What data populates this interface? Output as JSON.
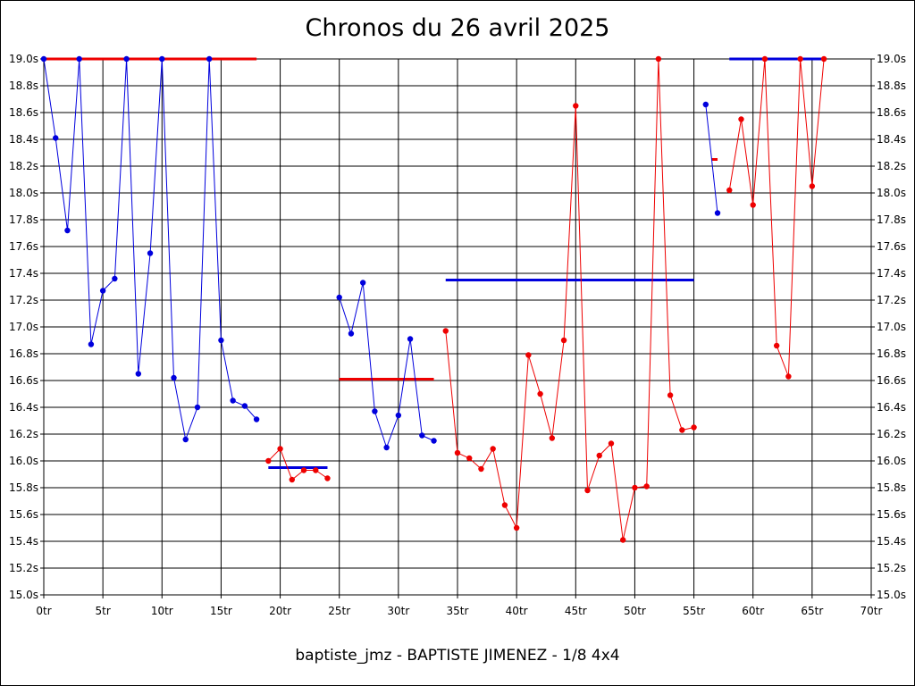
{
  "chart_data": {
    "type": "line",
    "title": "Chronos du 26 avril 2025",
    "subtitle": "baptiste_jmz - BAPTISTE JIMENEZ - 1/8 4x4",
    "xlabel": "",
    "ylabel": "",
    "xlim": [
      0,
      70
    ],
    "ylim": [
      15.0,
      19.0
    ],
    "x_ticks": [
      "0tr",
      "5tr",
      "10tr",
      "15tr",
      "20tr",
      "25tr",
      "30tr",
      "35tr",
      "40tr",
      "45tr",
      "50tr",
      "55tr",
      "60tr",
      "65tr",
      "70tr"
    ],
    "y_ticks": [
      "15.0s",
      "15.2s",
      "15.4s",
      "15.6s",
      "15.8s",
      "16.0s",
      "16.2s",
      "16.4s",
      "16.6s",
      "16.8s",
      "17.0s",
      "17.2s",
      "17.4s",
      "17.6s",
      "17.8s",
      "18.0s",
      "18.2s",
      "18.4s",
      "18.6s",
      "18.8s",
      "19.0s"
    ],
    "grid": true,
    "colors": {
      "blue": "#0000dd",
      "red": "#ee0000",
      "grid": "#000000"
    },
    "series": [
      {
        "color": "blue",
        "x": [
          0,
          1,
          2,
          3,
          4,
          5,
          6,
          7,
          8,
          9,
          10,
          11,
          12,
          13,
          14,
          15,
          16,
          17,
          18
        ],
        "y": [
          19.0,
          18.41,
          17.72,
          19.0,
          16.87,
          17.27,
          17.36,
          19.0,
          16.65,
          17.55,
          19.0,
          16.62,
          16.16,
          16.4,
          19.0,
          16.9,
          16.45,
          16.41,
          16.31
        ]
      },
      {
        "color": "red",
        "x": [
          19,
          20,
          21,
          22,
          23,
          24
        ],
        "y": [
          16.0,
          16.09,
          15.86,
          15.93,
          15.93,
          15.87
        ]
      },
      {
        "color": "blue",
        "x": [
          25,
          26,
          27,
          28,
          29,
          30,
          31,
          32,
          33
        ],
        "y": [
          17.22,
          16.95,
          17.33,
          16.37,
          16.1,
          16.34,
          16.91,
          16.19,
          16.15
        ]
      },
      {
        "color": "red",
        "x": [
          34,
          35,
          36,
          37,
          38,
          39,
          40,
          41,
          42,
          43,
          44,
          45,
          46,
          47,
          48,
          49,
          50,
          51,
          52,
          53,
          54,
          55
        ],
        "y": [
          16.97,
          16.06,
          16.02,
          15.94,
          16.09,
          15.67,
          15.5,
          16.79,
          16.5,
          16.17,
          16.9,
          18.65,
          15.78,
          16.04,
          16.13,
          15.41,
          15.8,
          15.81,
          19.0,
          16.49,
          16.23,
          16.25
        ]
      },
      {
        "color": "blue",
        "x": [
          56,
          57
        ],
        "y": [
          18.66,
          17.85
        ]
      },
      {
        "color": "red",
        "x": [
          58,
          59,
          60,
          61,
          62,
          63,
          64,
          65,
          66
        ],
        "y": [
          18.02,
          18.55,
          17.91,
          19.0,
          16.86,
          16.63,
          19.0,
          18.05,
          19.0
        ]
      }
    ],
    "averages": [
      {
        "color": "red",
        "x": [
          0,
          18
        ],
        "y": 19.0
      },
      {
        "color": "blue",
        "x": [
          19,
          24
        ],
        "y": 15.95
      },
      {
        "color": "red",
        "x": [
          25,
          33
        ],
        "y": 16.61
      },
      {
        "color": "blue",
        "x": [
          34,
          55
        ],
        "y": 17.35
      },
      {
        "color": "red",
        "x": [
          56.5,
          57
        ],
        "y": 18.25
      },
      {
        "color": "blue",
        "x": [
          58,
          66
        ],
        "y": 19.0
      }
    ]
  }
}
